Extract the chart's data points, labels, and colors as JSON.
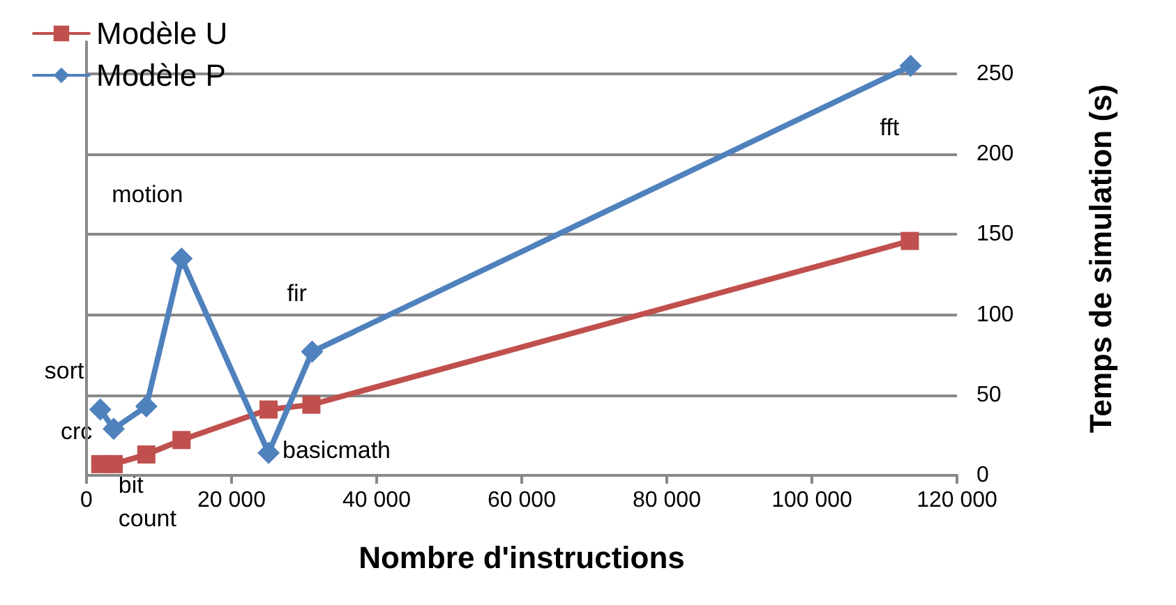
{
  "chart_data": {
    "type": "line",
    "xlabel": "Nombre d'instructions",
    "ylabel": "Temps de simulation (s)",
    "xlim": [
      0,
      120000
    ],
    "xticks": [
      0,
      {
        "value": 20000,
        "label": "20 000"
      },
      {
        "value": 40000,
        "label": "40 000"
      },
      {
        "value": 60000,
        "label": "60 000"
      },
      {
        "value": 80000,
        "label": "80 000"
      },
      {
        "value": 100000,
        "label": "100 000"
      },
      {
        "value": 120000,
        "label": "120 000"
      }
    ],
    "ylim": [
      0,
      270
    ],
    "yticks": [
      0,
      50,
      100,
      150,
      200,
      250
    ],
    "grid": "y",
    "legend": "top left",
    "line_style": "solid",
    "series": [
      {
        "name": "Modèle U",
        "color": "#c0504d",
        "marker": "square",
        "x": [
          1900,
          3750,
          8250,
          13100,
          25100,
          31000,
          113500
        ],
        "values": [
          7,
          7,
          13,
          22,
          41,
          44,
          146
        ]
      },
      {
        "name": "Modèle P",
        "color": "#4f81bd",
        "marker": "diamond",
        "x": [
          1900,
          3750,
          8250,
          13100,
          25100,
          31100,
          113600
        ],
        "values": [
          41,
          29,
          43,
          135,
          14,
          77,
          255
        ]
      }
    ],
    "annotations": [
      {
        "text": "sort",
        "x": 1900,
        "y": 41
      },
      {
        "text": "crc",
        "x": 3750,
        "y": 29
      },
      {
        "text": "bit\ncount",
        "x": 8250,
        "y": 13
      },
      {
        "text": "motion",
        "x": 13100,
        "y": 135
      },
      {
        "text": "basicmath",
        "x": 25100,
        "y": 14
      },
      {
        "text": "fir",
        "x": 31100,
        "y": 77
      },
      {
        "text": "fft",
        "x": 113600,
        "y": 255
      }
    ]
  }
}
